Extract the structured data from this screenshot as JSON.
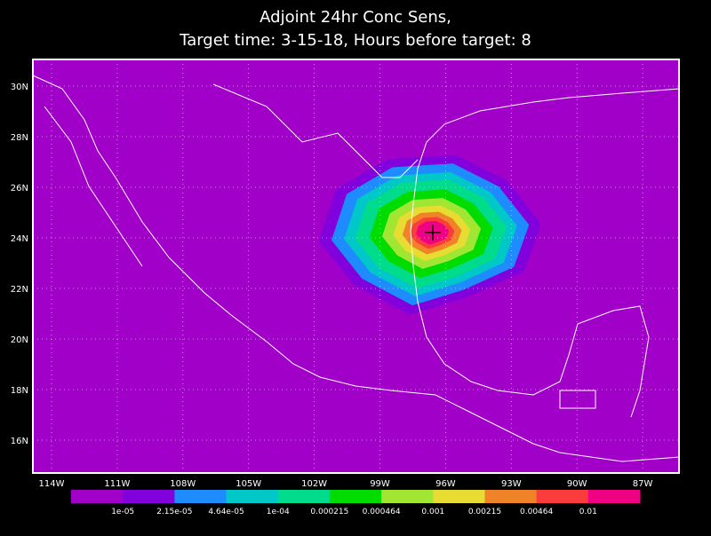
{
  "title": [
    "Adjoint 24hr Conc Sens,",
    "Target time: 3-15-18, Hours before target: 8"
  ],
  "map": {
    "lat_ticks": [
      "30N",
      "28N",
      "26N",
      "24N",
      "22N",
      "20N",
      "18N",
      "16N"
    ],
    "lon_ticks": [
      "114W",
      "111W",
      "108W",
      "105W",
      "102W",
      "99W",
      "96W",
      "93W",
      "90W",
      "87W"
    ]
  },
  "colorbar": {
    "colors": [
      "#a000c8",
      "#8200dc",
      "#1e8cff",
      "#00c8c8",
      "#00dc8c",
      "#00dc00",
      "#a0e632",
      "#e6dc32",
      "#f08228",
      "#fa3c3c",
      "#f00082"
    ],
    "labels": [
      "1e-05",
      "2.15e-05",
      "4.64e-05",
      "1e-04",
      "0.000215",
      "0.000464",
      "0.001",
      "0.00215",
      "0.00464",
      "0.01"
    ]
  }
}
